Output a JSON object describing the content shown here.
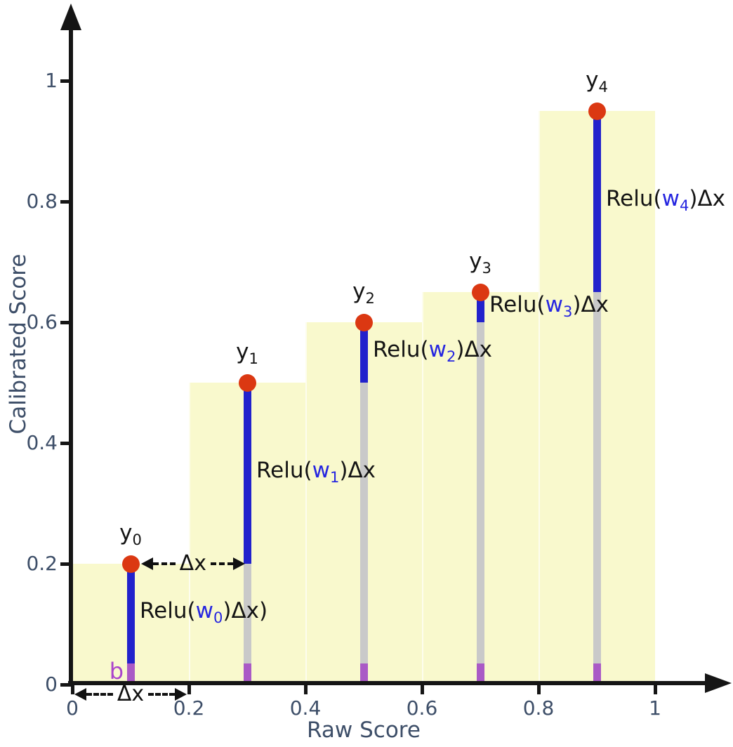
{
  "chart_data": {
    "type": "bar",
    "title": "",
    "xlabel": "Raw Score",
    "ylabel": "Calibrated Score",
    "xlim": [
      0,
      1
    ],
    "ylim": [
      0,
      1
    ],
    "grid": false,
    "legend": "none",
    "x_ticks": [
      {
        "v": 0.0,
        "label": "0"
      },
      {
        "v": 0.2,
        "label": "0.2"
      },
      {
        "v": 0.4,
        "label": "0.4"
      },
      {
        "v": 0.6,
        "label": "0.6"
      },
      {
        "v": 0.8,
        "label": "0.8"
      },
      {
        "v": 1.0,
        "label": "1"
      }
    ],
    "y_ticks": [
      {
        "v": 0.0,
        "label": "0"
      },
      {
        "v": 0.2,
        "label": "0.2"
      },
      {
        "v": 0.4,
        "label": "0.4"
      },
      {
        "v": 0.6,
        "label": "0.6"
      },
      {
        "v": 0.8,
        "label": "0.8"
      },
      {
        "v": 1.0,
        "label": "1"
      }
    ],
    "bars": [
      {
        "x0": 0.0,
        "x1": 0.2,
        "height": 0.2
      },
      {
        "x0": 0.2,
        "x1": 0.4,
        "height": 0.5
      },
      {
        "x0": 0.4,
        "x1": 0.6,
        "height": 0.6
      },
      {
        "x0": 0.6,
        "x1": 0.8,
        "height": 0.65
      },
      {
        "x0": 0.8,
        "x1": 1.0,
        "height": 0.95
      }
    ],
    "bias_height": 0.035,
    "points": [
      {
        "x": 0.1,
        "y": 0.2,
        "label": "y",
        "sub": "0"
      },
      {
        "x": 0.3,
        "y": 0.5,
        "label": "y",
        "sub": "1"
      },
      {
        "x": 0.5,
        "y": 0.6,
        "label": "y",
        "sub": "2"
      },
      {
        "x": 0.7,
        "y": 0.65,
        "label": "y",
        "sub": "3"
      },
      {
        "x": 0.9,
        "y": 0.95,
        "label": "y",
        "sub": "4"
      }
    ],
    "stems": [
      {
        "x": 0.1,
        "blue_from": 0.035,
        "blue_to": 0.2
      },
      {
        "x": 0.3,
        "blue_from": 0.2,
        "blue_to": 0.5
      },
      {
        "x": 0.5,
        "blue_from": 0.5,
        "blue_to": 0.6
      },
      {
        "x": 0.7,
        "blue_from": 0.6,
        "blue_to": 0.65
      },
      {
        "x": 0.9,
        "blue_from": 0.65,
        "blue_to": 0.95
      }
    ],
    "relu_labels": [
      {
        "pre": "Relu(",
        "w": "w",
        "sub": "0",
        "post": ")Δx)"
      },
      {
        "pre": "Relu(",
        "w": "w",
        "sub": "1",
        "post": ")Δx"
      },
      {
        "pre": "Relu(",
        "w": "w",
        "sub": "2",
        "post": ")Δx"
      },
      {
        "pre": "Relu(",
        "w": "w",
        "sub": "3",
        "post": ")Δx"
      },
      {
        "pre": "Relu(",
        "w": "w",
        "sub": "4",
        "post": ")Δx"
      }
    ],
    "bias_label": "b",
    "dx_arrows": [
      {
        "label": "Δx",
        "x_from": 0.118,
        "x_to": 0.296,
        "y": 0.2
      },
      {
        "label": "Δx",
        "x_from": 0.004,
        "x_to": 0.196,
        "y": -0.016
      }
    ],
    "colors": {
      "bar_fill": "#f9f9cd",
      "segment_blue": "#2222cc",
      "segment_gray": "#c9c9c9",
      "segment_purple": "#aa5ac6",
      "point": "#db3812",
      "axis": "#151515",
      "tick_label": "#3d4e68",
      "w_text": "#2626e0",
      "bias_text": "#aa44cc",
      "arrow_text": "#111111"
    }
  }
}
